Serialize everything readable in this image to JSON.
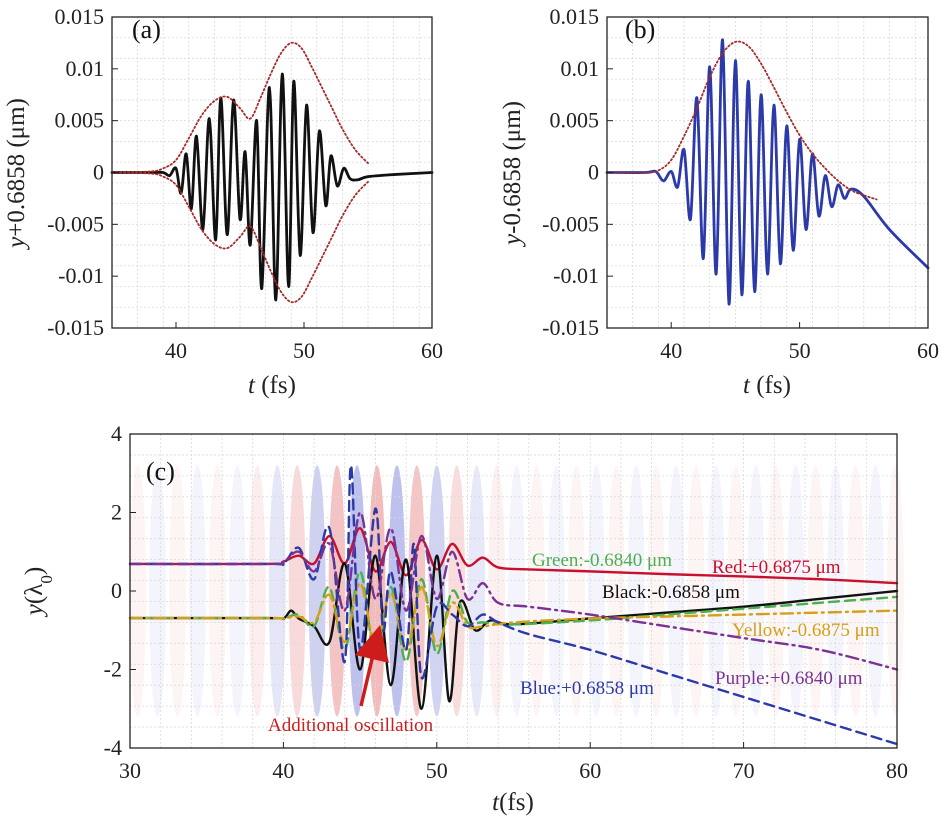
{
  "chart_data": [
    {
      "id": "a",
      "type": "line",
      "panel_label": "(a)",
      "xlabel_italic": "t",
      "xlabel_rest": " (fs)",
      "ylabel_italic": "y",
      "ylabel_rest": "+0.6858 (μm)",
      "xlim": [
        35,
        60
      ],
      "ylim": [
        -0.015,
        0.015
      ],
      "xticks": [
        40,
        50,
        60
      ],
      "yticks": [
        -0.015,
        -0.01,
        -0.005,
        0,
        0.005,
        0.01,
        0.015
      ],
      "ytick_labels": [
        "-0.015",
        "-0.01",
        "-0.005",
        "0",
        "0.005",
        "0.01",
        "0.015"
      ],
      "grid": true,
      "series": [
        {
          "style": "solid",
          "color": "#111111",
          "x": [
            35,
            38,
            39,
            39.5,
            40,
            40.4,
            40.8,
            41.2,
            41.6,
            42.1,
            42.6,
            43.1,
            43.5,
            44,
            44.5,
            45,
            45.4,
            45.8,
            46.3,
            46.7,
            47.3,
            47.8,
            48.3,
            48.8,
            49.2,
            49.7,
            50.2,
            50.7,
            51.2,
            51.7,
            52.1,
            52.6,
            53.1,
            53.6,
            54.2,
            55,
            57,
            60
          ],
          "y": [
            0,
            0,
            0,
            -0.0003,
            0.0004,
            -0.002,
            0.0018,
            -0.0035,
            0.0035,
            -0.0055,
            0.0052,
            -0.0065,
            0.0072,
            -0.006,
            0.007,
            -0.0045,
            0.002,
            -0.007,
            0.005,
            -0.0112,
            0.0082,
            -0.0123,
            0.0095,
            -0.011,
            0.0088,
            -0.008,
            0.0065,
            -0.0058,
            0.004,
            -0.0032,
            0.0016,
            -0.0013,
            0.0004,
            -0.0006,
            -0.0007,
            -0.0004,
            -0.0002,
            0
          ]
        },
        {
          "style": "dotted",
          "color": "#a52a2a",
          "x": [
            35,
            38,
            39,
            40,
            41,
            42,
            43,
            44,
            45,
            45.8,
            46.6,
            47.4,
            48.2,
            49,
            49.8,
            50.6,
            51.4,
            52.2,
            53,
            54,
            55
          ],
          "y": [
            0,
            0.0001,
            0.0004,
            0.0012,
            0.0033,
            0.0055,
            0.0069,
            0.0073,
            0.0062,
            0.0052,
            0.0072,
            0.0095,
            0.0115,
            0.0125,
            0.012,
            0.0102,
            0.0082,
            0.0062,
            0.0042,
            0.0022,
            0.0009
          ]
        },
        {
          "style": "dotted",
          "color": "#a52a2a",
          "x": [
            35,
            38,
            39,
            40,
            41,
            42,
            43,
            44,
            45,
            45.8,
            46.6,
            47.4,
            48.2,
            49,
            49.8,
            50.6,
            51.4,
            52.2,
            53,
            54,
            55
          ],
          "y": [
            0,
            -0.0001,
            -0.0004,
            -0.0012,
            -0.0033,
            -0.0055,
            -0.0069,
            -0.0073,
            -0.0062,
            -0.0052,
            -0.0072,
            -0.0095,
            -0.0115,
            -0.0125,
            -0.012,
            -0.0102,
            -0.0082,
            -0.0062,
            -0.0042,
            -0.0022,
            -0.0009
          ]
        }
      ]
    },
    {
      "id": "b",
      "type": "line",
      "panel_label": "(b)",
      "xlabel_italic": "t",
      "xlabel_rest": " (fs)",
      "ylabel_italic": "y",
      "ylabel_rest": "-0.6858 (μm)",
      "xlim": [
        35,
        60
      ],
      "ylim": [
        -0.015,
        0.015
      ],
      "xticks": [
        40,
        50,
        60
      ],
      "yticks": [
        -0.015,
        -0.01,
        -0.005,
        0,
        0.005,
        0.01,
        0.015
      ],
      "ytick_labels": [
        "-0.015",
        "-0.01",
        "-0.005",
        "0",
        "0.005",
        "0.01",
        "0.015"
      ],
      "grid": true,
      "series": [
        {
          "style": "solid",
          "color": "#2b3aa8",
          "x": [
            35,
            38,
            38.8,
            39.4,
            40,
            40.5,
            41,
            41.5,
            42,
            42.5,
            43,
            43.5,
            44,
            44.5,
            45,
            45.5,
            46,
            46.5,
            47,
            47.5,
            48,
            48.5,
            49,
            49.5,
            50,
            50.5,
            51,
            51.5,
            52,
            52.5,
            53,
            53.5,
            54,
            55,
            57,
            60
          ],
          "y": [
            0,
            0,
            0.0001,
            -0.0008,
            0.0001,
            -0.0014,
            0.0022,
            -0.0045,
            0.0072,
            -0.0083,
            0.0102,
            -0.0098,
            0.0128,
            -0.0127,
            0.0108,
            -0.0118,
            0.0088,
            -0.0115,
            0.0075,
            -0.0098,
            0.0065,
            -0.0088,
            0.0045,
            -0.0075,
            0.0032,
            -0.0055,
            0.0018,
            -0.0042,
            -0.0003,
            -0.0033,
            -0.0012,
            -0.0025,
            -0.0016,
            -0.0023,
            -0.0055,
            -0.0092
          ]
        },
        {
          "style": "dotted",
          "color": "#a52a2a",
          "x": [
            35,
            38,
            39,
            40,
            41,
            42,
            43,
            44,
            45,
            46,
            47,
            48,
            49,
            50,
            51,
            52,
            53,
            54,
            55,
            56
          ],
          "y": [
            0,
            0,
            0.0002,
            0.0012,
            0.0035,
            0.0062,
            0.0092,
            0.0115,
            0.0126,
            0.0122,
            0.0105,
            0.0082,
            0.0058,
            0.0036,
            0.0018,
            0.0004,
            -0.0008,
            -0.0017,
            -0.0022,
            -0.0026
          ]
        }
      ]
    },
    {
      "id": "c",
      "type": "line",
      "panel_label": "(c)",
      "xlabel_italic": "t",
      "xlabel_rest": "(fs)",
      "ylabel_italic": "y",
      "ylabel_rest": "(λ0)",
      "xlim": [
        30,
        80
      ],
      "ylim": [
        -4,
        4
      ],
      "xticks": [
        30,
        40,
        50,
        60,
        70,
        80
      ],
      "yticks": [
        -4,
        -2,
        0,
        2,
        4
      ],
      "ytick_labels": [
        "-4",
        "-2",
        "0",
        "2",
        "4"
      ],
      "grid": true,
      "background": "laser field intensity map (red/blue stripes, strongest near t=40-52 fs)",
      "series": [
        {
          "name": "Red:+0.6875 μm",
          "style": "solid",
          "color": "#c8102e",
          "x": [
            30,
            39,
            40,
            41,
            42,
            43,
            44,
            45,
            46,
            47,
            48,
            49,
            50,
            51,
            52,
            53,
            54,
            56,
            60,
            65,
            70,
            75,
            80
          ],
          "y": [
            0.69,
            0.69,
            0.75,
            0.9,
            0.7,
            1.4,
            0.7,
            1.6,
            0.5,
            1.25,
            0.4,
            1.3,
            0.55,
            1.2,
            0.65,
            0.85,
            0.6,
            0.55,
            0.5,
            0.43,
            0.37,
            0.3,
            0.2
          ]
        },
        {
          "name": "Black:-0.6858 μm",
          "style": "solid",
          "color": "#111111",
          "x": [
            30,
            39,
            40,
            40.5,
            41,
            42,
            43,
            44,
            45,
            46,
            47,
            48,
            49,
            50,
            50.8,
            51.5,
            52.5,
            53.5,
            55,
            60,
            65,
            70,
            75,
            80
          ],
          "y": [
            -0.69,
            -0.69,
            -0.7,
            -0.5,
            -0.7,
            -0.9,
            -1.3,
            0.7,
            -2.0,
            0.9,
            -2.4,
            0.8,
            -3.0,
            0.9,
            -2.8,
            -0.3,
            -1.0,
            -0.75,
            -0.85,
            -0.7,
            -0.55,
            -0.4,
            -0.2,
            0.0
          ]
        },
        {
          "name": "Green:-0.6840 μm",
          "style": "dashed",
          "color": "#4caf50",
          "x": [
            30,
            39,
            40,
            41,
            42,
            43,
            44,
            45,
            46,
            47,
            48,
            49,
            50,
            51,
            52,
            53,
            55,
            60,
            65,
            70,
            75,
            80
          ],
          "y": [
            -0.69,
            -0.69,
            -0.7,
            -0.6,
            -0.9,
            0.1,
            -1.5,
            0.5,
            -1.7,
            0.1,
            -1.8,
            0.3,
            -1.6,
            0.0,
            -0.8,
            -0.8,
            -0.85,
            -0.75,
            -0.6,
            -0.45,
            -0.3,
            -0.15
          ]
        },
        {
          "name": "Yellow:-0.6875 μm",
          "style": "dashdot",
          "color": "#d4a017",
          "x": [
            30,
            39,
            40,
            41,
            42,
            43,
            44,
            45,
            46,
            47,
            48,
            49,
            50,
            51,
            52,
            53,
            55,
            60,
            65,
            70,
            75,
            80
          ],
          "y": [
            -0.69,
            -0.69,
            -0.7,
            -0.65,
            -0.8,
            -0.1,
            -1.3,
            0.2,
            -1.4,
            -0.05,
            -1.5,
            0.1,
            -1.4,
            -0.3,
            -0.9,
            -0.9,
            -0.8,
            -0.7,
            -0.65,
            -0.6,
            -0.55,
            -0.5
          ]
        },
        {
          "name": "Blue:+0.6858 μm",
          "style": "dashed",
          "color": "#2b3aa8",
          "x": [
            30,
            39,
            40,
            41,
            42,
            43,
            44,
            44.4,
            45,
            46,
            46.5,
            47,
            48,
            48.5,
            49,
            50,
            51,
            52,
            53,
            54,
            56,
            60,
            65,
            70,
            75,
            80
          ],
          "y": [
            0.69,
            0.69,
            0.7,
            1.1,
            0.3,
            1.6,
            -1.8,
            3.2,
            -1.5,
            2.1,
            -1.0,
            0.5,
            -1.5,
            1.2,
            -2.2,
            -0.4,
            -0.6,
            -0.9,
            -0.6,
            -0.8,
            -1.1,
            -1.5,
            -2.1,
            -2.7,
            -3.3,
            -3.9
          ]
        },
        {
          "name": "Purple:+0.6840 μm",
          "style": "dashdot",
          "color": "#7b3294",
          "x": [
            30,
            39,
            40,
            41,
            42,
            43,
            44,
            45,
            46,
            47,
            48,
            49,
            50,
            51,
            52,
            53,
            54,
            56,
            60,
            65,
            70,
            75,
            80
          ],
          "y": [
            0.69,
            0.69,
            0.75,
            1.0,
            0.5,
            1.2,
            -0.5,
            2.0,
            -0.2,
            1.6,
            -0.5,
            1.4,
            -0.2,
            1.0,
            -0.2,
            0.2,
            -0.3,
            -0.4,
            -0.6,
            -0.9,
            -1.2,
            -1.5,
            -2.0
          ]
        }
      ],
      "legend_labels": [
        {
          "key": "green",
          "text": "Green:-0.6840 μm",
          "color": "#4caf50"
        },
        {
          "key": "red",
          "text": "Red:+0.6875 μm",
          "color": "#c8102e"
        },
        {
          "key": "black",
          "text": "Black:-0.6858 μm",
          "color": "#111111"
        },
        {
          "key": "yellow",
          "text": "Yellow:-0.6875 μm",
          "color": "#d4a017"
        },
        {
          "key": "purple",
          "text": "Purple:+0.6840 μm",
          "color": "#7b3294"
        },
        {
          "key": "blue",
          "text": "Blue:+0.6858 μm",
          "color": "#2b3aa8"
        }
      ],
      "annotation": {
        "text": "Additional oscillation",
        "color": "#cc1c1c"
      }
    }
  ]
}
